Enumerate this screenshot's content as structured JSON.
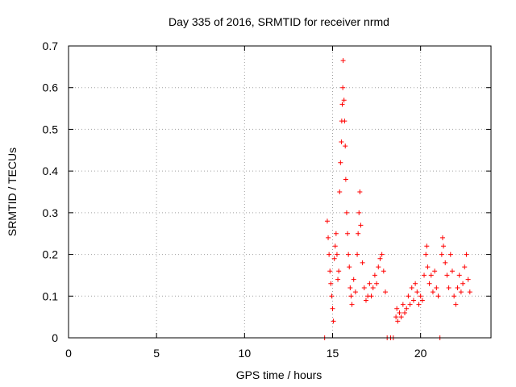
{
  "chart_data": {
    "type": "scatter",
    "title": "Day 335 of 2016, SRMTID for receiver nrmd",
    "xlabel": "GPS time / hours",
    "ylabel": "SRMTID / TECUs",
    "xlim": [
      0,
      24
    ],
    "ylim": [
      0,
      0.7
    ],
    "xticks": [
      0,
      5,
      10,
      15,
      20
    ],
    "yticks": [
      0,
      0.1,
      0.2,
      0.3,
      0.4,
      0.5,
      0.6,
      0.7
    ],
    "xtick_labels": [
      "0",
      "5",
      "10",
      "15",
      "20"
    ],
    "ytick_labels": [
      "0",
      "0.1",
      "0.2",
      "0.3",
      "0.4",
      "0.5",
      "0.6",
      "0.7"
    ],
    "grid": true,
    "marker": "+",
    "color": "#ff0000",
    "series": [
      {
        "name": "SRMTID",
        "points": [
          [
            14.55,
            0.0
          ],
          [
            18.1,
            0.0
          ],
          [
            18.3,
            0.0
          ],
          [
            18.45,
            0.0
          ],
          [
            21.1,
            0.0
          ],
          [
            14.7,
            0.28
          ],
          [
            14.75,
            0.24
          ],
          [
            14.8,
            0.2
          ],
          [
            14.85,
            0.16
          ],
          [
            14.9,
            0.13
          ],
          [
            14.95,
            0.1
          ],
          [
            15.0,
            0.07
          ],
          [
            15.05,
            0.04
          ],
          [
            15.1,
            0.19
          ],
          [
            15.15,
            0.22
          ],
          [
            15.2,
            0.25
          ],
          [
            15.25,
            0.2
          ],
          [
            15.3,
            0.14
          ],
          [
            15.35,
            0.16
          ],
          [
            15.4,
            0.35
          ],
          [
            15.45,
            0.42
          ],
          [
            15.5,
            0.47
          ],
          [
            15.52,
            0.52
          ],
          [
            15.55,
            0.56
          ],
          [
            15.58,
            0.6
          ],
          [
            15.6,
            0.665
          ],
          [
            15.65,
            0.57
          ],
          [
            15.68,
            0.52
          ],
          [
            15.72,
            0.46
          ],
          [
            15.75,
            0.38
          ],
          [
            15.8,
            0.3
          ],
          [
            15.85,
            0.25
          ],
          [
            15.9,
            0.2
          ],
          [
            15.95,
            0.17
          ],
          [
            16.0,
            0.12
          ],
          [
            16.05,
            0.1
          ],
          [
            16.1,
            0.08
          ],
          [
            16.2,
            0.14
          ],
          [
            16.3,
            0.11
          ],
          [
            16.4,
            0.2
          ],
          [
            16.45,
            0.25
          ],
          [
            16.5,
            0.3
          ],
          [
            16.55,
            0.35
          ],
          [
            16.6,
            0.27
          ],
          [
            16.7,
            0.18
          ],
          [
            16.8,
            0.12
          ],
          [
            16.9,
            0.09
          ],
          [
            17.0,
            0.1
          ],
          [
            17.1,
            0.13
          ],
          [
            17.2,
            0.1
          ],
          [
            17.3,
            0.12
          ],
          [
            17.4,
            0.15
          ],
          [
            17.5,
            0.13
          ],
          [
            17.6,
            0.17
          ],
          [
            17.7,
            0.19
          ],
          [
            17.8,
            0.2
          ],
          [
            17.9,
            0.16
          ],
          [
            18.0,
            0.11
          ],
          [
            18.6,
            0.05
          ],
          [
            18.65,
            0.07
          ],
          [
            18.7,
            0.04
          ],
          [
            18.8,
            0.06
          ],
          [
            18.9,
            0.05
          ],
          [
            19.0,
            0.08
          ],
          [
            19.1,
            0.06
          ],
          [
            19.2,
            0.07
          ],
          [
            19.3,
            0.1
          ],
          [
            19.4,
            0.08
          ],
          [
            19.5,
            0.12
          ],
          [
            19.6,
            0.09
          ],
          [
            19.7,
            0.13
          ],
          [
            19.8,
            0.11
          ],
          [
            19.9,
            0.08
          ],
          [
            20.0,
            0.1
          ],
          [
            20.1,
            0.09
          ],
          [
            20.2,
            0.15
          ],
          [
            20.3,
            0.2
          ],
          [
            20.35,
            0.22
          ],
          [
            20.4,
            0.17
          ],
          [
            20.5,
            0.13
          ],
          [
            20.6,
            0.15
          ],
          [
            20.7,
            0.11
          ],
          [
            20.8,
            0.16
          ],
          [
            20.9,
            0.12
          ],
          [
            21.0,
            0.1
          ],
          [
            21.2,
            0.2
          ],
          [
            21.25,
            0.24
          ],
          [
            21.3,
            0.22
          ],
          [
            21.4,
            0.18
          ],
          [
            21.5,
            0.15
          ],
          [
            21.6,
            0.12
          ],
          [
            21.7,
            0.2
          ],
          [
            21.8,
            0.16
          ],
          [
            21.9,
            0.1
          ],
          [
            22.0,
            0.08
          ],
          [
            22.1,
            0.12
          ],
          [
            22.2,
            0.15
          ],
          [
            22.3,
            0.11
          ],
          [
            22.4,
            0.13
          ],
          [
            22.5,
            0.17
          ],
          [
            22.6,
            0.2
          ],
          [
            22.7,
            0.14
          ],
          [
            22.8,
            0.11
          ]
        ]
      }
    ]
  }
}
